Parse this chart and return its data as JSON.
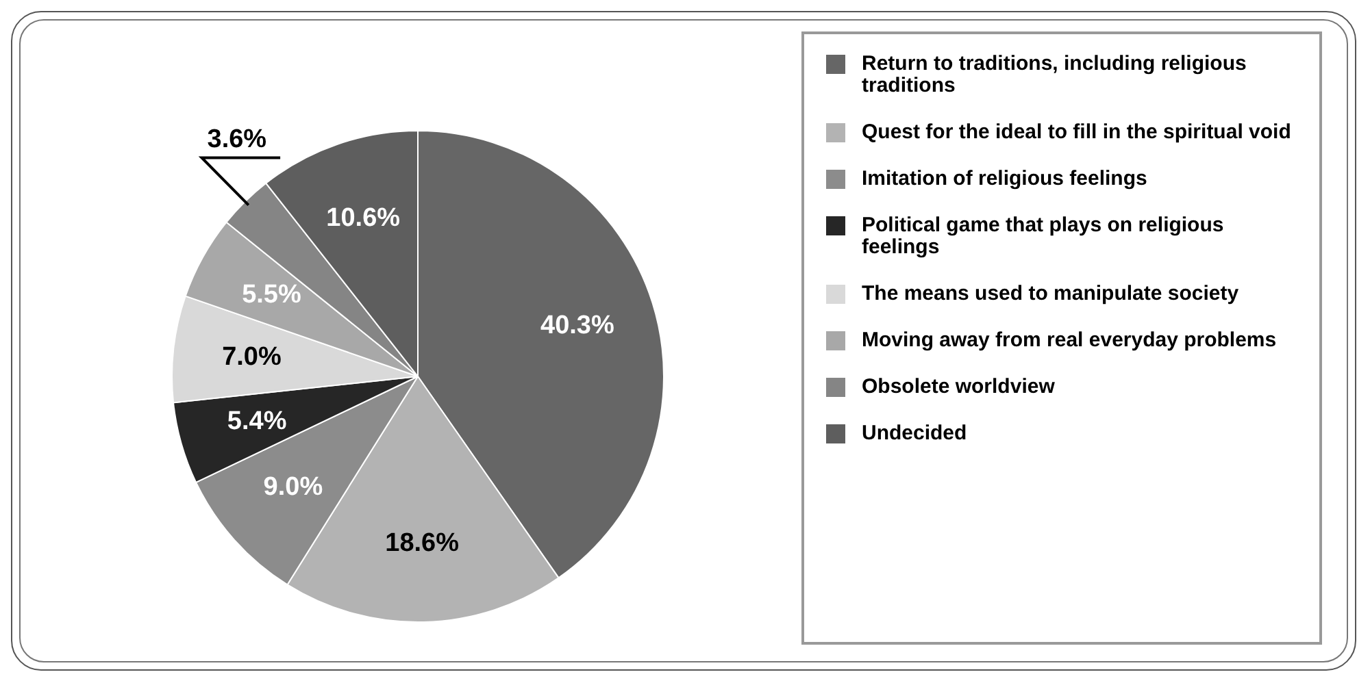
{
  "chart_data": {
    "type": "pie",
    "categories": [
      "Return to traditions, including religious traditions",
      "Quest for the ideal to fill in the spiritual void",
      "Imitation of religious feelings",
      "Political game that plays on religious feelings",
      "The means used to manipulate society",
      "Moving away from real everyday problems",
      "Obsolete worldview",
      "Undecided"
    ],
    "values": [
      40.3,
      18.6,
      9.0,
      5.4,
      7.0,
      5.5,
      3.6,
      10.6
    ],
    "colors": [
      "#666666",
      "#b3b3b3",
      "#8c8c8c",
      "#262626",
      "#d9d9d9",
      "#a8a8a8",
      "#858585",
      "#5e5e5e"
    ],
    "value_labels": [
      "40.3%",
      "18.6%",
      "9.0%",
      "5.4%",
      "7.0%",
      "5.5%",
      "3.6%",
      "10.6%"
    ],
    "legend": "right"
  }
}
